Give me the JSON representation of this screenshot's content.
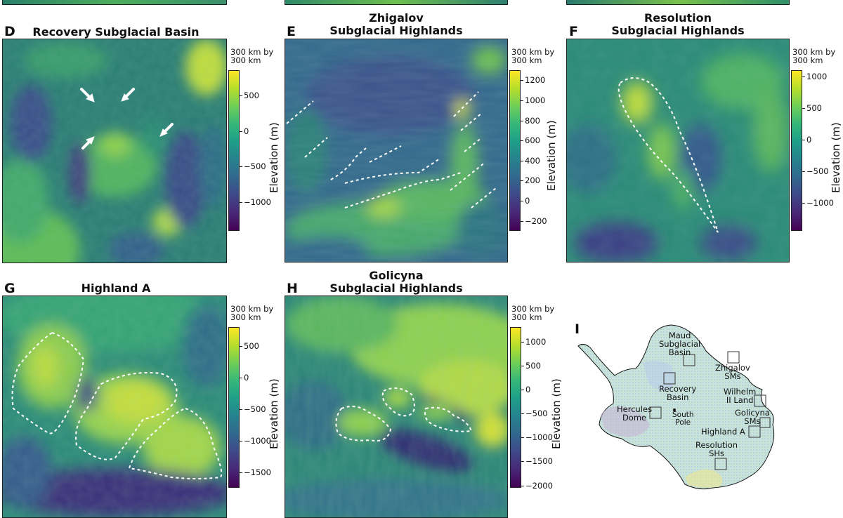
{
  "colorbar_label": "Elevation (m)",
  "panels": {
    "D": {
      "letter": "D",
      "title": "Recovery Subglacial Basin",
      "scale": "300 km by\n300 km",
      "ticks": [
        "500",
        "0",
        "−500",
        "−1000"
      ],
      "values": [
        500,
        0,
        -500,
        -1000
      ],
      "range": [
        -1400,
        850
      ]
    },
    "E": {
      "letter": "E",
      "title": "Zhigalov\nSubglacial Highlands",
      "scale": "300 km by\n300 km",
      "ticks": [
        "1200",
        "1000",
        "800",
        "600",
        "400",
        "200",
        "0",
        "−200"
      ],
      "values": [
        1200,
        1000,
        800,
        600,
        400,
        200,
        0,
        -200
      ],
      "range": [
        -300,
        1300
      ]
    },
    "F": {
      "letter": "F",
      "title": "Resolution\nSubglacial Highlands",
      "scale": "300 km by\n300 km",
      "ticks": [
        "1000",
        "500",
        "0",
        "−500",
        "−1000"
      ],
      "values": [
        1000,
        500,
        0,
        -500,
        -1000
      ],
      "range": [
        -1450,
        1100
      ]
    },
    "G": {
      "letter": "G",
      "title": "Highland A",
      "scale": "300 km by\n300 km",
      "ticks": [
        "500",
        "0",
        "−500",
        "−1000",
        "−1500"
      ],
      "values": [
        500,
        0,
        -500,
        -1000,
        -1500
      ],
      "range": [
        -1750,
        800
      ]
    },
    "H": {
      "letter": "H",
      "title": "Golicyna\nSubglacial Highlands",
      "scale": "300 km by\n300 km",
      "ticks": [
        "1000",
        "500",
        "0",
        "−500",
        "−1000",
        "−1500",
        "−2000"
      ],
      "values": [
        1000,
        500,
        0,
        -500,
        -1000,
        -1500,
        -2000
      ],
      "range": [
        -2050,
        1300
      ]
    },
    "I": {
      "letter": "I",
      "labels": {
        "maud": "Maud\nSubglacial\nBasin",
        "zhigalov": "Zhigalov\nSMs",
        "recovery": "Recovery\nBasin",
        "wilhelm": "Wilhelm\nII Land",
        "hercules": "Hercules\nDome",
        "southpole": "South\nPole",
        "golicyna": "Golicyna\nSMs",
        "highlanda": "Highland A",
        "resolution": "Resolution\nSHs"
      }
    }
  }
}
